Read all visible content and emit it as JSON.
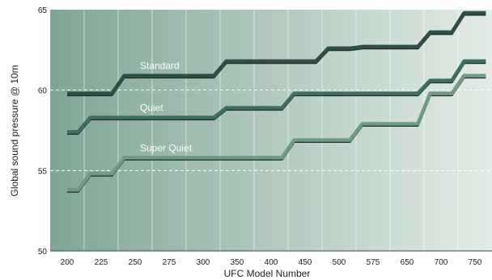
{
  "chart_data": {
    "type": "line",
    "xlabel": "UFC Model Number",
    "ylabel": "Global sound pressure @ 10m",
    "categories": [
      "200",
      "225",
      "250",
      "275",
      "300",
      "350",
      "400",
      "450",
      "500",
      "575",
      "650",
      "700",
      "750"
    ],
    "ylim": [
      50,
      65
    ],
    "yticks": [
      "50",
      "55",
      "60",
      "65"
    ],
    "grid": "dashed horizontal at 55 and 60; vertical band separators",
    "series": [
      {
        "name": "Standard",
        "color": "#2f4f44",
        "values": [
          59.8,
          59.8,
          60.9,
          60.9,
          60.9,
          61.8,
          61.8,
          61.8,
          62.6,
          62.7,
          62.7,
          63.6,
          64.8
        ]
      },
      {
        "name": "Quiet",
        "color": "#3f6e5e",
        "values": [
          57.4,
          58.3,
          58.3,
          58.3,
          58.3,
          58.9,
          58.9,
          59.8,
          59.8,
          59.8,
          59.8,
          60.6,
          61.8
        ]
      },
      {
        "name": "Super Quiet",
        "color": "#6f9a86",
        "values": [
          53.8,
          54.8,
          55.8,
          55.8,
          55.8,
          55.8,
          55.8,
          56.9,
          56.9,
          57.9,
          57.9,
          59.8,
          60.9
        ]
      }
    ]
  }
}
